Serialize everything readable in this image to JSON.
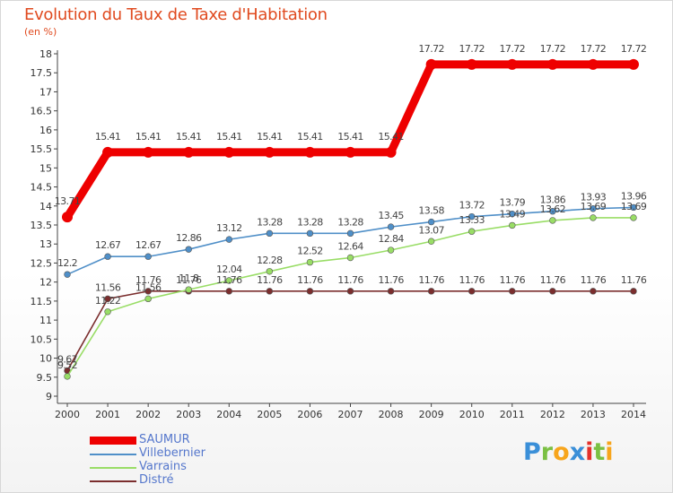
{
  "header": {
    "title": "Evolution du Taux de Taxe d'Habitation",
    "unit": "(en %)"
  },
  "chart_data": {
    "type": "line",
    "title": "Evolution du Taux de Taxe d'Habitation",
    "ylabel": "(en %)",
    "xlabel": "",
    "x": [
      "2000",
      "2001",
      "2002",
      "2003",
      "2004",
      "2005",
      "2006",
      "2007",
      "2008",
      "2009",
      "2010",
      "2011",
      "2012",
      "2013",
      "2014"
    ],
    "ylim": [
      9,
      18
    ],
    "yticks": [
      9,
      9.5,
      10,
      10.5,
      11,
      11.5,
      12,
      12.5,
      13,
      13.5,
      14,
      14.5,
      15,
      15.5,
      16,
      16.5,
      17,
      17.5,
      18
    ],
    "ytick_labels": [
      "9",
      "9.5",
      "10",
      "10.5",
      "11",
      "11.5",
      "12",
      "12.5",
      "13",
      "13.5",
      "14",
      "14.5",
      "15",
      "15.5",
      "16",
      "16.5",
      "17",
      "17.5",
      "18"
    ],
    "grid": false,
    "legend_position": "bottom-left",
    "series": [
      {
        "name": "SAUMUR",
        "color": "#ee0000",
        "values": [
          13.71,
          15.41,
          15.41,
          15.41,
          15.41,
          15.41,
          15.41,
          15.41,
          15.41,
          17.72,
          17.72,
          17.72,
          17.72,
          17.72,
          17.72
        ],
        "labels": [
          "13.71",
          "15.41",
          "15.41",
          "15.41",
          "15.41",
          "15.41",
          "15.41",
          "15.41",
          "15.41",
          "17.72",
          "17.72",
          "17.72",
          "17.72",
          "17.72",
          "17.72"
        ]
      },
      {
        "name": "Villebernier",
        "color": "#4f8fc8",
        "values": [
          12.2,
          12.67,
          12.67,
          12.86,
          13.12,
          13.28,
          13.28,
          13.28,
          13.45,
          13.58,
          13.72,
          13.79,
          13.86,
          13.93,
          13.96
        ],
        "labels": [
          "12.2",
          "12.67",
          "12.67",
          "12.86",
          "13.12",
          "13.28",
          "13.28",
          "13.28",
          "13.45",
          "13.58",
          "13.72",
          "13.79",
          "13.86",
          "13.93",
          "13.96"
        ]
      },
      {
        "name": "Varrains",
        "color": "#99dd66",
        "values": [
          9.52,
          11.22,
          11.56,
          11.8,
          12.04,
          12.28,
          12.52,
          12.64,
          12.84,
          13.07,
          13.33,
          13.49,
          13.62,
          13.69,
          13.69
        ],
        "labels": [
          "9.52",
          "11.22",
          "11.56",
          "11.8",
          "12.04",
          "12.28",
          "12.52",
          "12.64",
          "12.84",
          "13.07",
          "13.33",
          "13.49",
          "13.62",
          "13.69",
          "13.69"
        ]
      },
      {
        "name": "Distré",
        "color": "#7b2e2e",
        "values": [
          9.67,
          11.56,
          11.76,
          11.76,
          11.76,
          11.76,
          11.76,
          11.76,
          11.76,
          11.76,
          11.76,
          11.76,
          11.76,
          11.76,
          11.76
        ],
        "labels": [
          "9.67",
          "11.56",
          "11.76",
          "11.76",
          "11.76",
          "11.76",
          "11.76",
          "11.76",
          "11.76",
          "11.76",
          "11.76",
          "11.76",
          "11.76",
          "11.76",
          "11.76"
        ]
      }
    ]
  },
  "legend": {
    "items": [
      {
        "label": "SAUMUR",
        "color": "#ee0000"
      },
      {
        "label": "Villebernier",
        "color": "#4f8fc8"
      },
      {
        "label": "Varrains",
        "color": "#99dd66"
      },
      {
        "label": "Distré",
        "color": "#7b2e2e"
      }
    ]
  },
  "logo": {
    "letters": [
      "P",
      "r",
      "o",
      "x",
      "i",
      "t",
      "i"
    ],
    "colors": [
      "#3a8fd8",
      "#7bc043",
      "#f7a51c",
      "#3a8fd8",
      "#e4312b",
      "#7bc043",
      "#f7a51c"
    ]
  }
}
